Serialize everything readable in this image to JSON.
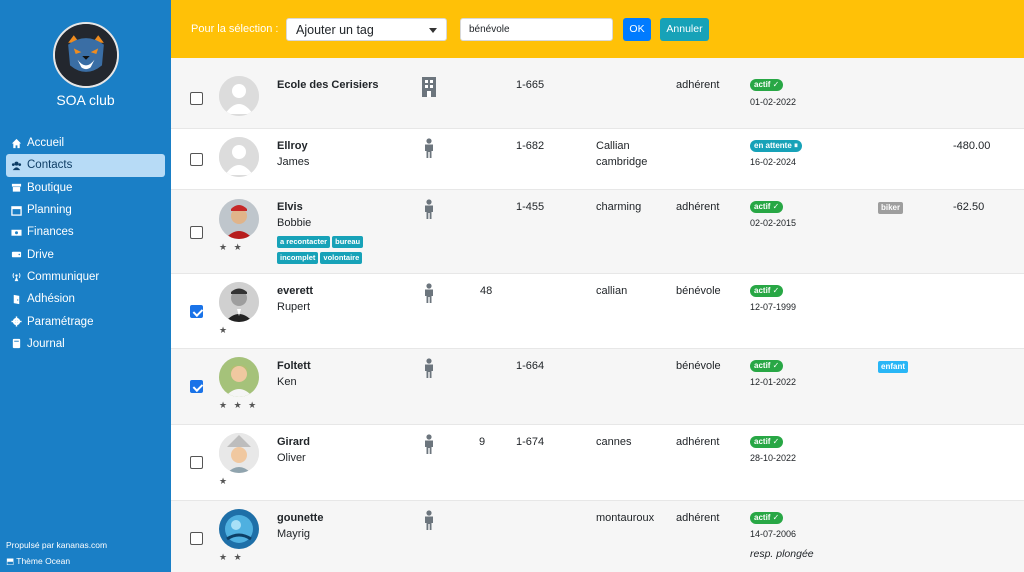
{
  "app": {
    "club_name": "SOA club"
  },
  "sidebar": {
    "items": [
      {
        "label": "Accueil",
        "icon": "home-icon"
      },
      {
        "label": "Contacts",
        "icon": "users-icon",
        "active": true
      },
      {
        "label": "Boutique",
        "icon": "shop-icon"
      },
      {
        "label": "Planning",
        "icon": "calendar-icon"
      },
      {
        "label": "Finances",
        "icon": "money-icon"
      },
      {
        "label": "Drive",
        "icon": "drive-icon"
      },
      {
        "label": "Communiquer",
        "icon": "broadcast-icon"
      },
      {
        "label": "Adhésion",
        "icon": "door-icon"
      },
      {
        "label": "Paramétrage",
        "icon": "gear-icon"
      },
      {
        "label": "Journal",
        "icon": "book-icon"
      }
    ],
    "footer_powered": "Propulsé par kananas.com",
    "footer_theme": "Thème Ocean"
  },
  "topbar": {
    "selection_label": "Pour la sélection :",
    "action_selected": "Ajouter un tag",
    "tag_value": "bénévole",
    "ok_label": "OK",
    "cancel_label": "Annuler"
  },
  "colors": {
    "sidebar": "#1a7fc6",
    "topbar": "#ffc107",
    "actif": "#28a745",
    "tag": "#17a2b8"
  },
  "rows": [
    {
      "name": "Ecole des Cerisiers",
      "first": "",
      "type": "building-icon",
      "num": "",
      "code": "1-665",
      "city": "",
      "role": "adhérent",
      "status": "actif ✓",
      "status_kind": "actif",
      "date": "01-02-2022",
      "checked": false,
      "stars": "",
      "tags": [],
      "badge": "",
      "amount": "",
      "note": ""
    },
    {
      "name": "Ellroy",
      "first": "James",
      "type": "person-icon",
      "num": "",
      "code": "1-682",
      "city": "Callian cambridge",
      "role": "",
      "status": "en attente ⏸",
      "status_kind": "attente",
      "date": "16-02-2024",
      "checked": false,
      "stars": "",
      "tags": [],
      "badge": "",
      "amount": "-480.00",
      "note": ""
    },
    {
      "name": "Elvis",
      "first": "Bobbie",
      "type": "person-icon",
      "num": "",
      "code": "1-455",
      "city": "charming",
      "role": "adhérent",
      "status": "actif ✓",
      "status_kind": "actif",
      "date": "02-02-2015",
      "checked": false,
      "stars": "★ ★",
      "tags": [
        "a recontacter",
        "bureau",
        "incomplet",
        "volontaire"
      ],
      "badge": "biker",
      "amount": "-62.50",
      "note": ""
    },
    {
      "name": "everett",
      "first": "Rupert",
      "type": "person-icon",
      "num": "48",
      "code": "",
      "city": "callian",
      "role": "bénévole",
      "status": "actif ✓",
      "status_kind": "actif",
      "date": "12-07-1999",
      "checked": true,
      "stars": "★",
      "tags": [],
      "badge": "",
      "amount": "",
      "note": ""
    },
    {
      "name": "Foltett",
      "first": "Ken",
      "type": "person-icon",
      "num": "",
      "code": "1-664",
      "city": "",
      "role": "bénévole",
      "status": "actif ✓",
      "status_kind": "actif",
      "date": "12-01-2022",
      "checked": true,
      "stars": "★ ★ ★",
      "tags": [],
      "badge": "enfant",
      "amount": "",
      "note": ""
    },
    {
      "name": "Girard",
      "first": "Oliver",
      "type": "person-icon",
      "num": "9",
      "code": "1-674",
      "city": "cannes",
      "role": "adhérent",
      "status": "actif ✓",
      "status_kind": "actif",
      "date": "28-10-2022",
      "checked": false,
      "stars": "★",
      "tags": [],
      "badge": "",
      "amount": "",
      "note": ""
    },
    {
      "name": "gounette",
      "first": "Mayrig",
      "type": "person-icon",
      "num": "",
      "code": "",
      "city": "montauroux",
      "role": "adhérent",
      "status": "actif ✓",
      "status_kind": "actif",
      "date": "14-07-2006",
      "checked": false,
      "stars": "★ ★",
      "tags": [],
      "badge": "",
      "amount": "",
      "note": "resp. plongée"
    }
  ]
}
